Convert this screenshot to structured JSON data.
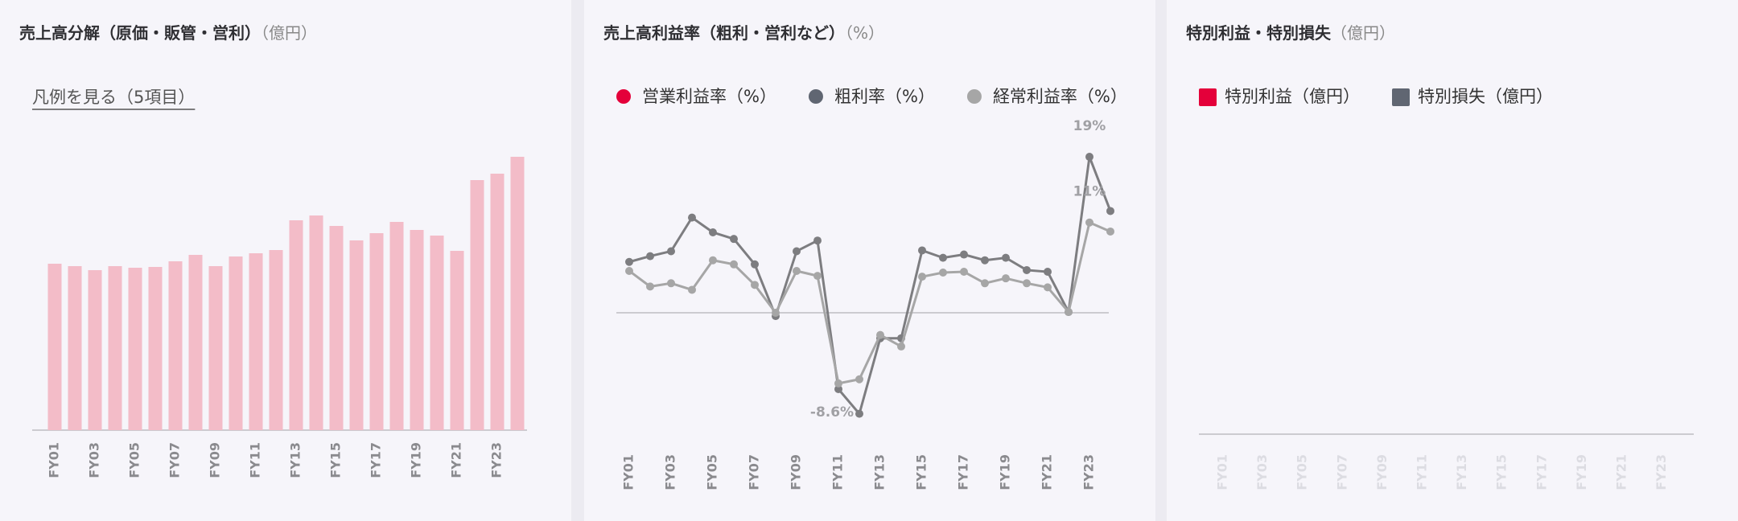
{
  "chart_data": [
    {
      "type": "bar",
      "title": "売上高分解（原価・販管・営利）",
      "unit": "（億円）",
      "legend_link": "凡例を見る（5項目）",
      "categories": [
        "FY01",
        null,
        "FY03",
        null,
        "FY05",
        null,
        "FY07",
        null,
        "FY09",
        null,
        "FY11",
        null,
        "FY13",
        null,
        "FY15",
        null,
        "FY17",
        null,
        "FY19",
        null,
        "FY21",
        null,
        "FY23",
        null
      ],
      "values": [
        207,
        204,
        199,
        204,
        202,
        203,
        210,
        218,
        204,
        216,
        220,
        224,
        261,
        267,
        254,
        236,
        245,
        259,
        249,
        242,
        223,
        311,
        319,
        340
      ],
      "color": "#f3bcc8",
      "ylim": [
        0,
        360
      ]
    },
    {
      "type": "line",
      "title": "売上高利益率（粗利・営利など）",
      "unit": "（%）",
      "categories": [
        "FY01",
        null,
        "FY03",
        null,
        "FY05",
        null,
        "FY07",
        null,
        "FY09",
        null,
        "FY11",
        null,
        "FY13",
        null,
        "FY15",
        null,
        "FY17",
        null,
        "FY19",
        null,
        "FY21",
        null,
        "FY23",
        null
      ],
      "series": [
        {
          "name": "営業利益率（%）",
          "color": "#e4003a",
          "values": [
            null,
            null,
            null,
            null,
            null,
            null,
            null,
            null,
            null,
            null,
            null,
            null,
            null,
            null,
            null,
            null,
            null,
            null,
            null,
            null,
            null,
            null,
            null,
            null
          ]
        },
        {
          "name": "粗利率（%）",
          "color": "#606672",
          "values": [
            6.2,
            6.9,
            7.5,
            11.6,
            9.8,
            9.0,
            5.9,
            -0.4,
            7.5,
            8.8,
            -9.3,
            -12.3,
            -3.1,
            -3.1,
            7.6,
            6.7,
            7.1,
            6.4,
            6.7,
            5.2,
            5.0,
            0.1,
            19,
            12.4
          ],
          "value_labels": [
            null,
            null,
            null,
            null,
            null,
            null,
            null,
            null,
            null,
            null,
            null,
            null,
            null,
            null,
            null,
            null,
            null,
            null,
            null,
            null,
            null,
            null,
            "19%",
            null
          ]
        },
        {
          "name": "経常利益率（%）",
          "color": "#a6a6a6",
          "values": [
            5.1,
            3.2,
            3.6,
            2.8,
            6.4,
            5.9,
            3.4,
            0,
            5.1,
            4.5,
            -8.6,
            -8.1,
            -2.7,
            -4.1,
            4.4,
            4.9,
            5.0,
            3.6,
            4.2,
            3.6,
            3.1,
            0.1,
            11,
            9.9
          ],
          "value_labels": [
            null,
            null,
            null,
            null,
            null,
            null,
            null,
            null,
            null,
            null,
            "-8.6%",
            null,
            null,
            null,
            null,
            null,
            null,
            null,
            null,
            null,
            null,
            null,
            "11%",
            null
          ]
        }
      ],
      "ylim": [
        -14,
        24
      ]
    },
    {
      "type": "bar",
      "title": "特別利益・特別損失",
      "unit": "（億円）",
      "categories": [
        "FY01",
        null,
        "FY03",
        null,
        "FY05",
        null,
        "FY07",
        null,
        "FY09",
        null,
        "FY11",
        null,
        "FY13",
        null,
        "FY15",
        null,
        "FY17",
        null,
        "FY19",
        null,
        "FY21",
        null,
        "FY23",
        null
      ],
      "series": [
        {
          "name": "特別利益（億円）",
          "color": "#e4003a",
          "values": [
            null,
            null,
            null,
            null,
            null,
            null,
            null,
            null,
            null,
            null,
            null,
            null,
            null,
            null,
            null,
            null,
            null,
            null,
            null,
            null,
            null,
            null,
            null,
            null
          ]
        },
        {
          "name": "特別損失（億円）",
          "color": "#606672",
          "values": [
            null,
            null,
            null,
            null,
            null,
            null,
            null,
            null,
            null,
            null,
            null,
            null,
            null,
            null,
            null,
            null,
            null,
            null,
            null,
            null,
            null,
            null,
            null,
            null
          ]
        }
      ]
    }
  ]
}
